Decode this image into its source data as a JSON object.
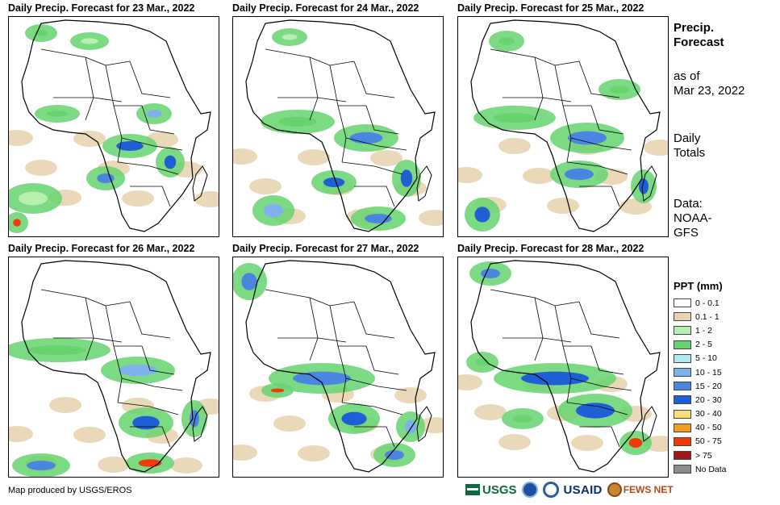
{
  "panels": [
    {
      "title": "Daily Precip. Forecast for 23 Mar., 2022"
    },
    {
      "title": "Daily Precip. Forecast for 24 Mar., 2022"
    },
    {
      "title": "Daily Precip. Forecast for 25 Mar., 2022"
    },
    {
      "title": "Daily Precip. Forecast for 26 Mar., 2022"
    },
    {
      "title": "Daily Precip. Forecast for 27 Mar., 2022"
    },
    {
      "title": "Daily Precip. Forecast for 28 Mar., 2022"
    }
  ],
  "sidebar": {
    "title_line1": "Precip.",
    "title_line2": "Forecast",
    "asof_line1": "as of",
    "asof_line2": "Mar 23, 2022",
    "daily_line1": "Daily",
    "daily_line2": "Totals",
    "data_line1": "Data:",
    "data_line2": "NOAA-",
    "data_line3": "GFS"
  },
  "legend": {
    "title": "PPT (mm)",
    "items": [
      {
        "label": "0 - 0.1",
        "color": "#ffffff"
      },
      {
        "label": "0.1 - 1",
        "color": "#e8d5b0"
      },
      {
        "label": "1 - 2",
        "color": "#b6efb0"
      },
      {
        "label": "2 - 5",
        "color": "#66d36e"
      },
      {
        "label": "5 - 10",
        "color": "#aeeaf0"
      },
      {
        "label": "10 - 15",
        "color": "#7fb2ec"
      },
      {
        "label": "15 - 20",
        "color": "#4a86e0"
      },
      {
        "label": "20 - 30",
        "color": "#1f5fd6"
      },
      {
        "label": "30 - 40",
        "color": "#f5e07a"
      },
      {
        "label": "40 - 50",
        "color": "#f0a020"
      },
      {
        "label": "50 - 75",
        "color": "#f03a0a"
      },
      {
        "label": "> 75",
        "color": "#9e1a1a"
      },
      {
        "label": "No Data",
        "color": "#8c8c8c"
      }
    ]
  },
  "footer": {
    "credit": "Map produced by USGS/EROS",
    "logo_usgs": "USGS",
    "logo_usaid": "USAID",
    "logo_fews": "FEWS NET"
  }
}
